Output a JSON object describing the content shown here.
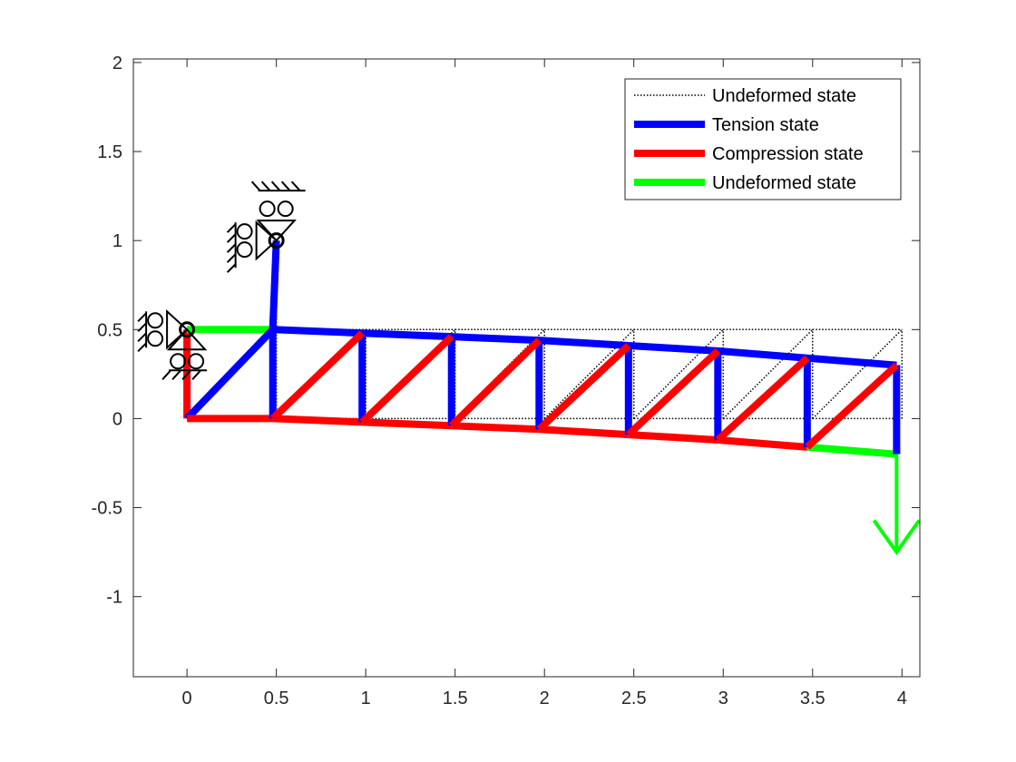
{
  "chart_data": {
    "type": "line",
    "title": "",
    "xlabel": "",
    "ylabel": "",
    "xlim": [
      -0.3,
      4.1
    ],
    "ylim": [
      -1.45,
      2.02
    ],
    "xticks": [
      0,
      0.5,
      1,
      1.5,
      2,
      2.5,
      3,
      3.5,
      4
    ],
    "xtick_labels": [
      "0",
      "0.5",
      "1",
      "1.5",
      "2",
      "2.5",
      "3",
      "3.5",
      "4"
    ],
    "yticks": [
      -1,
      -0.5,
      0,
      0.5,
      1,
      1.5,
      2
    ],
    "ytick_labels": [
      "-1",
      "-0.5",
      "0",
      "0.5",
      "1",
      "1.5",
      "2"
    ],
    "grid": false,
    "legend": {
      "location": "top-right",
      "entries": [
        {
          "label": "Undeformed state",
          "style": "dotted",
          "color": "#000000"
        },
        {
          "label": "Tension state",
          "style": "solid",
          "color": "#0000ff"
        },
        {
          "label": "Compression state",
          "style": "solid",
          "color": "#ff0000"
        },
        {
          "label": "Undeformed state",
          "style": "solid",
          "color": "#00ff00"
        }
      ]
    },
    "colors": {
      "undeformed": "#000000",
      "tension": "#0000ff",
      "compression": "#ff0000",
      "zero_force": "#00ff00",
      "load": "#00ff00"
    },
    "undeformed_nodes": [
      [
        0,
        0
      ],
      [
        0,
        0.5
      ],
      [
        0.5,
        0
      ],
      [
        0.5,
        0.5
      ],
      [
        1,
        0
      ],
      [
        1,
        0.5
      ],
      [
        1.5,
        0
      ],
      [
        1.5,
        0.5
      ],
      [
        2,
        0
      ],
      [
        2,
        0.5
      ],
      [
        2.5,
        0
      ],
      [
        2.5,
        0.5
      ],
      [
        3,
        0
      ],
      [
        3,
        0.5
      ],
      [
        3.5,
        0
      ],
      [
        3.5,
        0.5
      ],
      [
        4,
        0
      ],
      [
        4,
        0.5
      ],
      [
        0.5,
        1
      ]
    ],
    "deformed_nodes": [
      [
        0,
        0
      ],
      [
        0,
        0.5
      ],
      [
        0.48,
        0
      ],
      [
        0.48,
        0.5
      ],
      [
        0.98,
        -0.02
      ],
      [
        0.98,
        0.48
      ],
      [
        1.48,
        -0.04
      ],
      [
        1.48,
        0.46
      ],
      [
        1.97,
        -0.06
      ],
      [
        1.97,
        0.44
      ],
      [
        2.47,
        -0.09
      ],
      [
        2.47,
        0.41
      ],
      [
        2.97,
        -0.12
      ],
      [
        2.97,
        0.38
      ],
      [
        3.47,
        -0.16
      ],
      [
        3.47,
        0.34
      ],
      [
        3.97,
        -0.2
      ],
      [
        3.97,
        0.3
      ],
      [
        0.5,
        1
      ]
    ],
    "members": [
      {
        "from": 0,
        "to": 1,
        "state": "compression"
      },
      {
        "from": 1,
        "to": 3,
        "state": "zero"
      },
      {
        "from": 0,
        "to": 3,
        "state": "tension"
      },
      {
        "from": 0,
        "to": 2,
        "state": "compression"
      },
      {
        "from": 2,
        "to": 3,
        "state": "tension"
      },
      {
        "from": 3,
        "to": 18,
        "state": "tension"
      },
      {
        "from": 3,
        "to": 5,
        "state": "tension"
      },
      {
        "from": 5,
        "to": 7,
        "state": "tension"
      },
      {
        "from": 7,
        "to": 9,
        "state": "tension"
      },
      {
        "from": 9,
        "to": 11,
        "state": "tension"
      },
      {
        "from": 11,
        "to": 13,
        "state": "tension"
      },
      {
        "from": 13,
        "to": 15,
        "state": "tension"
      },
      {
        "from": 15,
        "to": 17,
        "state": "tension"
      },
      {
        "from": 2,
        "to": 4,
        "state": "compression"
      },
      {
        "from": 4,
        "to": 6,
        "state": "compression"
      },
      {
        "from": 6,
        "to": 8,
        "state": "compression"
      },
      {
        "from": 8,
        "to": 10,
        "state": "compression"
      },
      {
        "from": 10,
        "to": 12,
        "state": "compression"
      },
      {
        "from": 12,
        "to": 14,
        "state": "compression"
      },
      {
        "from": 14,
        "to": 16,
        "state": "zero"
      },
      {
        "from": 4,
        "to": 5,
        "state": "tension"
      },
      {
        "from": 6,
        "to": 7,
        "state": "tension"
      },
      {
        "from": 8,
        "to": 9,
        "state": "tension"
      },
      {
        "from": 10,
        "to": 11,
        "state": "tension"
      },
      {
        "from": 12,
        "to": 13,
        "state": "tension"
      },
      {
        "from": 14,
        "to": 15,
        "state": "tension"
      },
      {
        "from": 16,
        "to": 17,
        "state": "tension"
      },
      {
        "from": 2,
        "to": 5,
        "state": "compression"
      },
      {
        "from": 4,
        "to": 7,
        "state": "compression"
      },
      {
        "from": 6,
        "to": 9,
        "state": "compression"
      },
      {
        "from": 8,
        "to": 11,
        "state": "compression"
      },
      {
        "from": 10,
        "to": 13,
        "state": "compression"
      },
      {
        "from": 12,
        "to": 15,
        "state": "compression"
      },
      {
        "from": 14,
        "to": 17,
        "state": "compression"
      }
    ],
    "supports": [
      {
        "node": 1,
        "type": "roller-both-axes",
        "location": [
          0,
          0.5
        ]
      },
      {
        "node": 18,
        "type": "roller-both-axes",
        "location": [
          0.5,
          1
        ]
      }
    ],
    "load": {
      "node": 16,
      "direction": "down",
      "tip": [
        3.97,
        -0.75
      ]
    }
  }
}
